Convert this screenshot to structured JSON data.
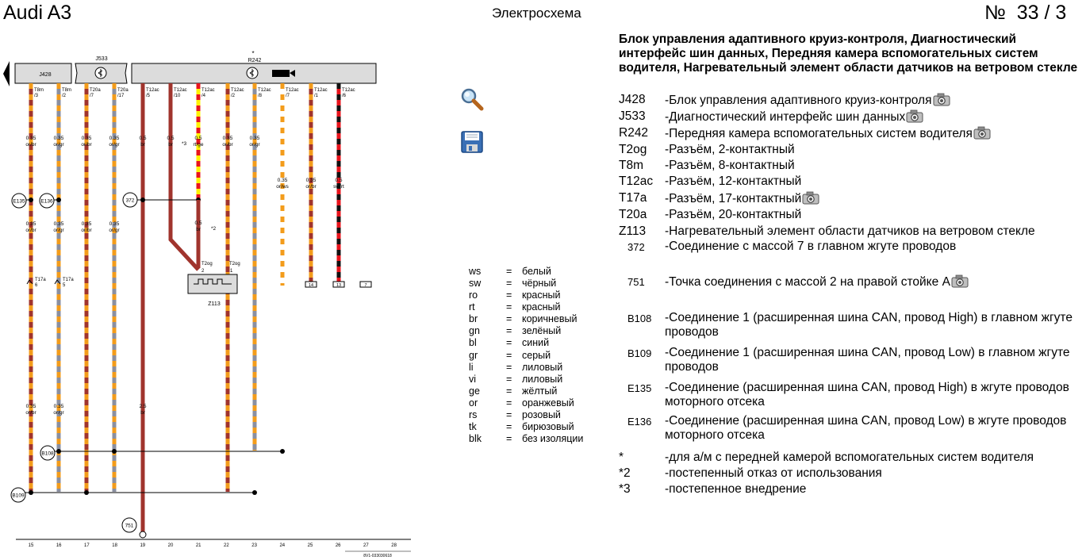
{
  "header": {
    "car": "Audi A3",
    "section": "Электросхема",
    "page_number": "№  33 / 3"
  },
  "toolbar": {
    "zoom_icon": "magnifier-icon",
    "save_icon": "floppy-disk-icon"
  },
  "colors": {
    "brown": "#a0342d",
    "orange": "#f39c1b",
    "grey": "#8a8fa0",
    "yellow": "#fff200",
    "red": "#e8141c",
    "black": "#111111",
    "white": "#ffffff",
    "box_fill": "#dcdcdc"
  },
  "diagram": {
    "components": {
      "j428": "J428",
      "j533": "J533",
      "r242": "R242",
      "r242_dot": "*",
      "z113": "Z113"
    },
    "wires": [
      {
        "pin": "T8m\n/3",
        "size": "0.35",
        "color": "or/br"
      },
      {
        "pin": "T8m\n/2",
        "size": "0.35",
        "color": "or/gr"
      },
      {
        "pin": "T20a\n/7",
        "size": "0.35",
        "color": "or/br"
      },
      {
        "pin": "T20a\n/17",
        "size": "0.35",
        "color": "or/gr"
      },
      {
        "pin": "T12ac\n/5",
        "size": "0.5",
        "color": "br"
      },
      {
        "pin": "T12ac\n/10",
        "size": "0.5",
        "color": "br"
      },
      {
        "pin": "T12ac\n/4",
        "size": "0.5",
        "color": "rt/ge"
      },
      {
        "pin": "T12ac\n/2",
        "size": "0.35",
        "color": "or/br"
      },
      {
        "pin": "T12ac\n/8",
        "size": "0.35",
        "color": "or/gr"
      },
      {
        "pin": "T12ac\n/7",
        "size": "0.35",
        "color": "or/ws"
      },
      {
        "pin": "T12ac\n/1",
        "size": "0.35",
        "color": "or/br"
      },
      {
        "pin": "T12ac\n/6",
        "size": "0.5",
        "color": "sw/rt"
      }
    ],
    "lower_labels": [
      {
        "size": "0.35",
        "color": "or/br"
      },
      {
        "size": "0.35",
        "color": "or/gr"
      },
      {
        "size": "0.35",
        "color": "or/br"
      },
      {
        "size": "0.35",
        "color": "or/gr"
      },
      {
        "size": "0.35",
        "color": "or/br"
      },
      {
        "size": "0.35",
        "color": "or/gr"
      },
      {
        "size": "2.5",
        "color": "br"
      }
    ],
    "branch": {
      "size": "0.5",
      "color": "br",
      "note2": "*2",
      "note3": "*3"
    },
    "connectors": {
      "t2og": "T2og",
      "pin2": "2",
      "pin1": "1",
      "t17a": "T17a",
      "pin6": "6",
      "pin5": "5"
    },
    "nodes": {
      "e135": "E135",
      "e136": "E136",
      "n372": "372",
      "b108": "B108",
      "b109": "B109",
      "n751": "751"
    },
    "terminals": [
      "14",
      "13",
      "7"
    ],
    "columns": [
      "15",
      "16",
      "17",
      "18",
      "19",
      "20",
      "21",
      "22",
      "23",
      "24",
      "25",
      "26",
      "27",
      "28"
    ],
    "doc_code": "8V1-033030618"
  },
  "color_codes": [
    {
      "code": "ws",
      "eq": "=",
      "name": "белый"
    },
    {
      "code": "sw",
      "eq": "=",
      "name": "чёрный"
    },
    {
      "code": "ro",
      "eq": "=",
      "name": "красный"
    },
    {
      "code": "rt",
      "eq": "=",
      "name": "красный"
    },
    {
      "code": "br",
      "eq": "=",
      "name": "коричневый"
    },
    {
      "code": "gn",
      "eq": "=",
      "name": "зелёный"
    },
    {
      "code": "bl",
      "eq": "=",
      "name": "синий"
    },
    {
      "code": "gr",
      "eq": "=",
      "name": "серый"
    },
    {
      "code": "li",
      "eq": "=",
      "name": "лиловый"
    },
    {
      "code": "vi",
      "eq": "=",
      "name": "лиловый"
    },
    {
      "code": "ge",
      "eq": "=",
      "name": "жёлтый"
    },
    {
      "code": "or",
      "eq": "=",
      "name": "оранжевый"
    },
    {
      "code": "rs",
      "eq": "=",
      "name": "розовый"
    },
    {
      "code": "tk",
      "eq": "=",
      "name": "бирюзовый"
    },
    {
      "code": "blk",
      "eq": "=",
      "name": "без изоляции"
    }
  ],
  "description": {
    "title": "Блок управления адаптивного круиз-контроля, Диагностический интерфейс шин данных, Передняя камера вспомогательных систем водителя, Нагревательный элемент области датчиков на ветровом стекле",
    "items": [
      {
        "code": "J428",
        "text": "-Блок управления адаптивного круиз-контроля",
        "camera": true
      },
      {
        "code": "J533",
        "text": "-Диагностический интерфейс шин данных",
        "camera": true
      },
      {
        "code": "R242",
        "text": "-Передняя камера вспомогательных систем водителя",
        "camera": true
      },
      {
        "code": "T2og",
        "text": "-Разъём, 2-контактный",
        "camera": false
      },
      {
        "code": "T8m",
        "text": "-Разъём, 8-контактный",
        "camera": false
      },
      {
        "code": "T12ac",
        "text": "-Разъём, 12-контактный",
        "camera": false
      },
      {
        "code": "T17a",
        "text": "-Разъём, 17-контактный",
        "camera": true
      },
      {
        "code": "T20a",
        "text": "-Разъём, 20-контактный",
        "camera": false
      },
      {
        "code": "Z113",
        "text": "-Нагревательный элемент области датчиков на ветровом стекле",
        "camera": false
      },
      {
        "code": "372",
        "text": "-Соединение с массой 7 в главном жгуте проводов",
        "camera": false,
        "small": true
      },
      {
        "code": "751",
        "text": "-Точка соединения с массой 2 на правой стойке A",
        "camera": true,
        "small": true
      },
      {
        "code": "B108",
        "text": "-Соединение 1 (расширенная шина CAN, провод High) в главном жгуте проводов",
        "camera": false,
        "small": true
      },
      {
        "code": "B109",
        "text": "-Соединение 1 (расширенная шина CAN, провод Low) в главном жгуте проводов",
        "camera": false,
        "small": true
      },
      {
        "code": "E135",
        "text": "-Соединение (расширенная шина CAN, провод High) в жгуте проводов моторного отсека",
        "camera": false,
        "small": true
      },
      {
        "code": "E136",
        "text": "-Соединение (расширенная шина CAN, провод Low) в жгуте проводов моторного отсека",
        "camera": false,
        "small": true
      },
      {
        "code": "*",
        "text": "-для а/м с передней камерой вспомогательных систем водителя",
        "camera": false
      },
      {
        "code": "*2",
        "text": "-постепенный отказ от использования",
        "camera": false
      },
      {
        "code": "*3",
        "text": "-постепенное внедрение",
        "camera": false
      }
    ]
  }
}
